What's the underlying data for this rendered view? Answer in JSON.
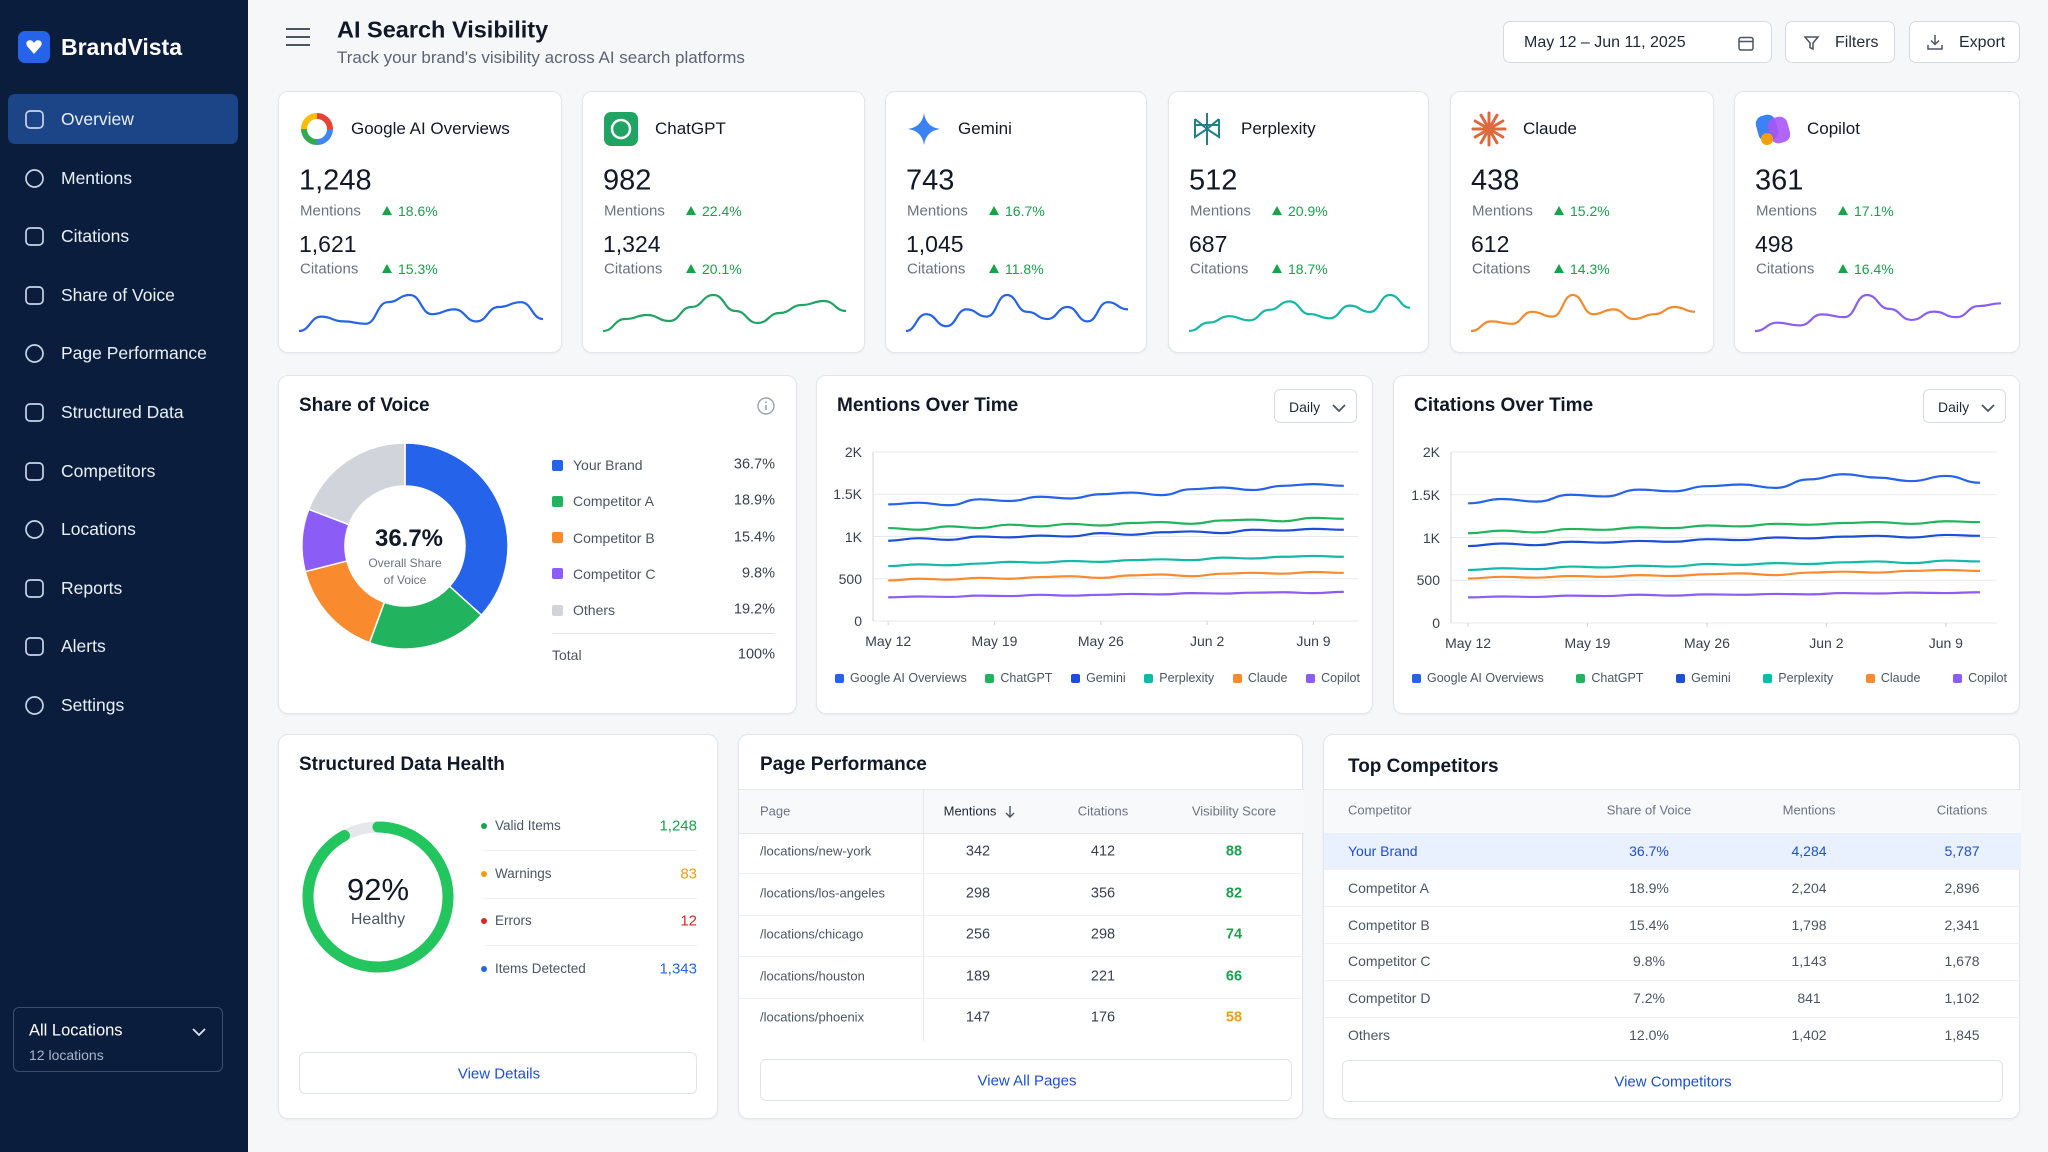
{
  "brand": "BrandVista",
  "nav": [
    "Overview",
    "Mentions",
    "Citations",
    "Share of Voice",
    "Page Performance",
    "Structured Data",
    "Competitors",
    "Locations",
    "Reports",
    "Alerts",
    "Settings"
  ],
  "location": {
    "title": "All Locations",
    "subtitle": "12 locations"
  },
  "header": {
    "title": "AI Search Visibility",
    "subtitle": "Track your brand's visibility across AI search platforms",
    "date_range": "May 12 – Jun 11, 2025",
    "filters": "Filters",
    "export": "Export"
  },
  "card_labels": [
    "Mentions",
    "Citations"
  ],
  "platforms": [
    {
      "name": "Google AI Overviews",
      "color": "#2563eb",
      "mentions": "1,248",
      "mentions_change": "18.6%",
      "citations": "1,621",
      "citations_change": "15.3%",
      "trend": [
        40,
        46,
        44,
        43,
        52,
        55,
        47,
        49,
        44,
        50,
        52,
        45
      ]
    },
    {
      "name": "ChatGPT",
      "color": "#1fa463",
      "mentions": "982",
      "mentions_change": "22.4%",
      "citations": "1,324",
      "citations_change": "20.1%",
      "trend": [
        38,
        44,
        46,
        43,
        50,
        56,
        48,
        42,
        47,
        51,
        53,
        48
      ]
    },
    {
      "name": "Gemini",
      "color": "#2563eb",
      "mentions": "743",
      "mentions_change": "16.7%",
      "citations": "1,045",
      "citations_change": "11.8%",
      "trend": [
        40,
        47,
        42,
        49,
        46,
        55,
        48,
        45,
        50,
        44,
        52,
        49
      ]
    },
    {
      "name": "Perplexity",
      "color": "#14b8a6",
      "mentions": "512",
      "mentions_change": "20.9%",
      "citations": "687",
      "citations_change": "18.7%",
      "trend": [
        38,
        42,
        45,
        43,
        48,
        52,
        46,
        44,
        50,
        47,
        55,
        49
      ]
    },
    {
      "name": "Claude",
      "color": "#f58a2c",
      "mentions": "438",
      "mentions_change": "15.2%",
      "citations": "612",
      "citations_change": "14.3%",
      "trend": [
        40,
        44,
        43,
        48,
        46,
        55,
        47,
        49,
        45,
        47,
        50,
        48
      ]
    },
    {
      "name": "Copilot",
      "color": "#8b5cf6",
      "mentions": "361",
      "mentions_change": "17.1%",
      "citations": "498",
      "citations_change": "16.4%",
      "trend": [
        40,
        43,
        42,
        46,
        45,
        53,
        48,
        44,
        47,
        45,
        49,
        50
      ]
    }
  ],
  "share_of_voice": {
    "type": "pie",
    "title": "Share of Voice",
    "center_caption": "Overall Share of Voice",
    "categories": [
      "Your Brand",
      "Competitor A",
      "Competitor B",
      "Competitor C",
      "Others"
    ],
    "values": [
      36.7,
      18.9,
      15.4,
      9.8,
      19.2
    ],
    "value_labels": [
      "36.7%",
      "18.9%",
      "15.4%",
      "9.8%",
      "19.2%"
    ],
    "colors": [
      "#2563eb",
      "#22b35e",
      "#f98a2d",
      "#8b5cf6",
      "#d1d5db"
    ],
    "total_label": "Total",
    "total": "100%"
  },
  "mentions_chart": {
    "type": "line",
    "title": "Mentions Over Time",
    "period": "Daily",
    "x": [
      0,
      2,
      4,
      6,
      8,
      10,
      12,
      14,
      16,
      18,
      20,
      22,
      24,
      26,
      28,
      30
    ],
    "xlim": [
      -1,
      31
    ],
    "xticks": [
      {
        "value": 0,
        "label": "May 12"
      },
      {
        "value": 7,
        "label": "May 19"
      },
      {
        "value": 14,
        "label": "May 26"
      },
      {
        "value": 21,
        "label": "Jun 2"
      },
      {
        "value": 28,
        "label": "Jun 9"
      }
    ],
    "ylim": [
      0,
      2000
    ],
    "yticks": [
      0,
      500,
      {
        "value": 1000,
        "label": "1K"
      },
      {
        "value": 1500,
        "label": "1.5K"
      },
      {
        "value": 2000,
        "label": "2K"
      }
    ],
    "series": [
      {
        "name": "Google AI Overviews",
        "color": "#2563eb",
        "values": [
          1380,
          1400,
          1370,
          1440,
          1420,
          1470,
          1450,
          1500,
          1520,
          1490,
          1560,
          1580,
          1550,
          1600,
          1620,
          1600
        ]
      },
      {
        "name": "ChatGPT",
        "color": "#22b35e",
        "values": [
          1100,
          1080,
          1120,
          1100,
          1140,
          1120,
          1150,
          1130,
          1160,
          1170,
          1150,
          1190,
          1200,
          1180,
          1220,
          1210
        ]
      },
      {
        "name": "Gemini",
        "color": "#1d4ed8",
        "values": [
          950,
          980,
          960,
          1000,
          990,
          1010,
          1000,
          1040,
          1020,
          1050,
          1060,
          1040,
          1080,
          1070,
          1090,
          1080
        ]
      },
      {
        "name": "Perplexity",
        "color": "#14b8a6",
        "values": [
          650,
          670,
          660,
          680,
          700,
          690,
          710,
          700,
          720,
          730,
          720,
          750,
          740,
          760,
          770,
          760
        ]
      },
      {
        "name": "Claude",
        "color": "#f98a2d",
        "values": [
          480,
          500,
          490,
          510,
          500,
          520,
          530,
          510,
          540,
          550,
          530,
          560,
          570,
          560,
          580,
          570
        ]
      },
      {
        "name": "Copilot",
        "color": "#8b5cf6",
        "values": [
          280,
          290,
          285,
          300,
          295,
          310,
          300,
          310,
          320,
          315,
          330,
          325,
          335,
          340,
          330,
          345
        ]
      }
    ]
  },
  "citations_chart": {
    "type": "line",
    "title": "Citations Over Time",
    "period": "Daily",
    "x": [
      0,
      2,
      4,
      6,
      8,
      10,
      12,
      14,
      16,
      18,
      20,
      22,
      24,
      26,
      28,
      30
    ],
    "xlim": [
      -1,
      31
    ],
    "xticks": [
      {
        "value": 0,
        "label": "May 12"
      },
      {
        "value": 7,
        "label": "May 19"
      },
      {
        "value": 14,
        "label": "May 26"
      },
      {
        "value": 21,
        "label": "Jun 2"
      },
      {
        "value": 28,
        "label": "Jun 9"
      }
    ],
    "ylim": [
      0,
      2000
    ],
    "yticks": [
      0,
      500,
      {
        "value": 1000,
        "label": "1K"
      },
      {
        "value": 1500,
        "label": "1.5K"
      },
      {
        "value": 2000,
        "label": "2K"
      }
    ],
    "series": [
      {
        "name": "Google AI Overviews",
        "color": "#2563eb",
        "values": [
          1400,
          1450,
          1420,
          1500,
          1480,
          1560,
          1540,
          1600,
          1620,
          1580,
          1680,
          1740,
          1700,
          1660,
          1720,
          1640
        ]
      },
      {
        "name": "ChatGPT",
        "color": "#22b35e",
        "values": [
          1050,
          1080,
          1060,
          1100,
          1090,
          1120,
          1110,
          1140,
          1130,
          1160,
          1150,
          1170,
          1180,
          1160,
          1190,
          1180
        ]
      },
      {
        "name": "Gemini",
        "color": "#1d4ed8",
        "values": [
          900,
          930,
          910,
          950,
          940,
          960,
          950,
          980,
          970,
          1000,
          990,
          1010,
          1020,
          1000,
          1030,
          1020
        ]
      },
      {
        "name": "Perplexity",
        "color": "#14b8a6",
        "values": [
          620,
          640,
          630,
          660,
          650,
          670,
          660,
          690,
          680,
          700,
          690,
          710,
          720,
          700,
          730,
          720
        ]
      },
      {
        "name": "Claude",
        "color": "#f98a2d",
        "values": [
          520,
          540,
          530,
          550,
          540,
          560,
          550,
          570,
          580,
          560,
          590,
          600,
          590,
          610,
          620,
          610
        ]
      },
      {
        "name": "Copilot",
        "color": "#8b5cf6",
        "values": [
          300,
          310,
          305,
          320,
          315,
          330,
          320,
          335,
          330,
          340,
          335,
          350,
          345,
          355,
          350,
          360
        ]
      }
    ]
  },
  "structured_data": {
    "title": "Structured Data Health",
    "score": 92,
    "score_lim": [
      0,
      100
    ],
    "score_label": "92%",
    "status": "Healthy",
    "color": "#22c55e",
    "items": [
      {
        "label": "Valid Items",
        "value": "1,248",
        "color": "#16a34a"
      },
      {
        "label": "Warnings",
        "value": "83",
        "color": "#f59e0b"
      },
      {
        "label": "Errors",
        "value": "12",
        "color": "#dc2626"
      },
      {
        "label": "Items Detected",
        "value": "1,343",
        "color": "#2563eb"
      }
    ],
    "action": "View Details"
  },
  "page_performance": {
    "title": "Page Performance",
    "columns": [
      "Page",
      "Mentions",
      "Citations",
      "Visibility Score"
    ],
    "rows": [
      [
        "/locations/new-york",
        "342",
        "412",
        "88"
      ],
      [
        "/locations/los-angeles",
        "298",
        "356",
        "82"
      ],
      [
        "/locations/chicago",
        "256",
        "298",
        "74"
      ],
      [
        "/locations/houston",
        "189",
        "221",
        "66"
      ],
      [
        "/locations/phoenix",
        "147",
        "176",
        "58"
      ]
    ],
    "score_colors": [
      "#16a34a",
      "#16a34a",
      "#16a34a",
      "#16a34a",
      "#f59e0b"
    ],
    "action": "View All Pages"
  },
  "top_competitors": {
    "title": "Top Competitors",
    "columns": [
      "Competitor",
      "Share of Voice",
      "Mentions",
      "Citations"
    ],
    "rows": [
      [
        "Your Brand",
        "36.7%",
        "4,284",
        "5,787"
      ],
      [
        "Competitor A",
        "18.9%",
        "2,204",
        "2,896"
      ],
      [
        "Competitor B",
        "15.4%",
        "1,798",
        "2,341"
      ],
      [
        "Competitor C",
        "9.8%",
        "1,143",
        "1,678"
      ],
      [
        "Competitor D",
        "7.2%",
        "841",
        "1,102"
      ],
      [
        "Others",
        "12.0%",
        "1,402",
        "1,845"
      ]
    ],
    "highlight_row": 0,
    "action": "View Competitors"
  }
}
